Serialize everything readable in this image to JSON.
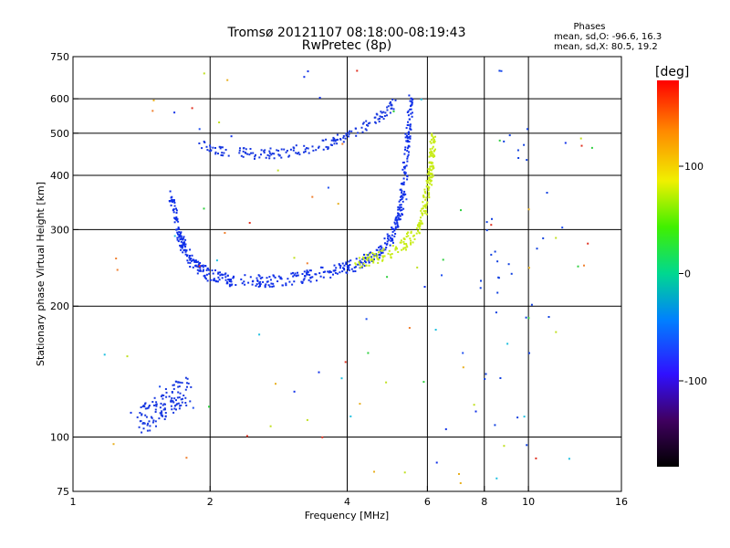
{
  "chart_data": {
    "type": "scatter",
    "title": "Tromsø 20121107 08:18:00-08:19:43",
    "subtitle": "RwPretec (8p)",
    "stats": {
      "heading": "Phases",
      "o_line": "mean, sd,O: -96.6, 16.3",
      "x_line": "mean, sd,X:  80.5, 19.2"
    },
    "xlabel": "Frequency [MHz]",
    "ylabel": "Stationary phase Virtual Height [km]",
    "x_scale": "log",
    "y_scale": "log",
    "xlim": [
      1,
      16
    ],
    "ylim": [
      75,
      750
    ],
    "x_ticks": [
      1,
      2,
      4,
      6,
      8,
      10,
      16
    ],
    "x_tick_labels": [
      "1",
      "2",
      "4",
      "6",
      "8",
      "10",
      "16"
    ],
    "y_ticks": [
      75,
      100,
      200,
      300,
      400,
      500,
      600,
      750
    ],
    "y_tick_labels": [
      "75",
      "100",
      "200",
      "300",
      "400",
      "500",
      "600",
      "750"
    ],
    "grid_x": [
      2,
      4,
      6,
      8,
      10
    ],
    "grid_y": [
      100,
      200,
      300,
      400,
      500,
      600
    ],
    "grid": true,
    "colorbar": {
      "label": "[deg]",
      "range": [
        -180,
        180
      ],
      "ticks": [
        100,
        0,
        -100
      ],
      "tick_labels": [
        "100",
        "0",
        "-100"
      ]
    },
    "traces": [
      {
        "name": "O-mode F2 trace",
        "color": "#1030e8",
        "count": 560,
        "spread": 0.022,
        "points": [
          [
            1.65,
            360
          ],
          [
            1.68,
            320
          ],
          [
            1.72,
            290
          ],
          [
            1.76,
            270
          ],
          [
            1.82,
            255
          ],
          [
            1.9,
            244
          ],
          [
            2.0,
            236
          ],
          [
            2.2,
            230
          ],
          [
            2.5,
            228
          ],
          [
            2.8,
            229
          ],
          [
            3.1,
            232
          ],
          [
            3.4,
            236
          ],
          [
            3.7,
            240
          ],
          [
            4.0,
            245
          ],
          [
            4.3,
            252
          ],
          [
            4.6,
            262
          ],
          [
            4.9,
            278
          ],
          [
            5.1,
            300
          ],
          [
            5.25,
            340
          ],
          [
            5.35,
            400
          ],
          [
            5.42,
            460
          ],
          [
            5.48,
            530
          ],
          [
            5.52,
            600
          ]
        ]
      },
      {
        "name": "X-mode F2 trace",
        "color": "#c8ec18",
        "count": 240,
        "spread": 0.022,
        "points": [
          [
            4.2,
            252
          ],
          [
            4.6,
            258
          ],
          [
            5.0,
            266
          ],
          [
            5.4,
            280
          ],
          [
            5.7,
            300
          ],
          [
            5.9,
            330
          ],
          [
            6.0,
            370
          ],
          [
            6.1,
            410
          ],
          [
            6.15,
            450
          ],
          [
            6.2,
            500
          ]
        ]
      },
      {
        "name": "Upper O trace",
        "color": "#1838e0",
        "count": 180,
        "spread": 0.018,
        "points": [
          [
            1.9,
            470
          ],
          [
            2.0,
            460
          ],
          [
            2.2,
            452
          ],
          [
            2.5,
            448
          ],
          [
            2.8,
            450
          ],
          [
            3.2,
            458
          ],
          [
            3.6,
            472
          ],
          [
            4.0,
            492
          ],
          [
            4.4,
            520
          ],
          [
            4.8,
            555
          ],
          [
            5.1,
            590
          ]
        ]
      },
      {
        "name": "Low-frequency trace",
        "color": "#1a3ae0",
        "count": 130,
        "spread": 0.05,
        "points": [
          [
            1.4,
            110
          ],
          [
            1.5,
            112
          ],
          [
            1.6,
            118
          ],
          [
            1.7,
            125
          ],
          [
            1.8,
            128
          ]
        ]
      },
      {
        "name": "Column near 9.3 MHz",
        "color": "#1040e0",
        "count": 35,
        "spread": 0.3,
        "points": [
          [
            9.25,
            400
          ],
          [
            9.28,
            260
          ],
          [
            9.3,
            180
          ],
          [
            9.28,
            140
          ],
          [
            9.25,
            590
          ]
        ]
      }
    ],
    "scatter": {
      "count": 95,
      "colors": [
        "#1030e8",
        "#2050f0",
        "#e8b020",
        "#f08030",
        "#20c0e0",
        "#30d040",
        "#e03020",
        "#c0e020"
      ]
    }
  }
}
